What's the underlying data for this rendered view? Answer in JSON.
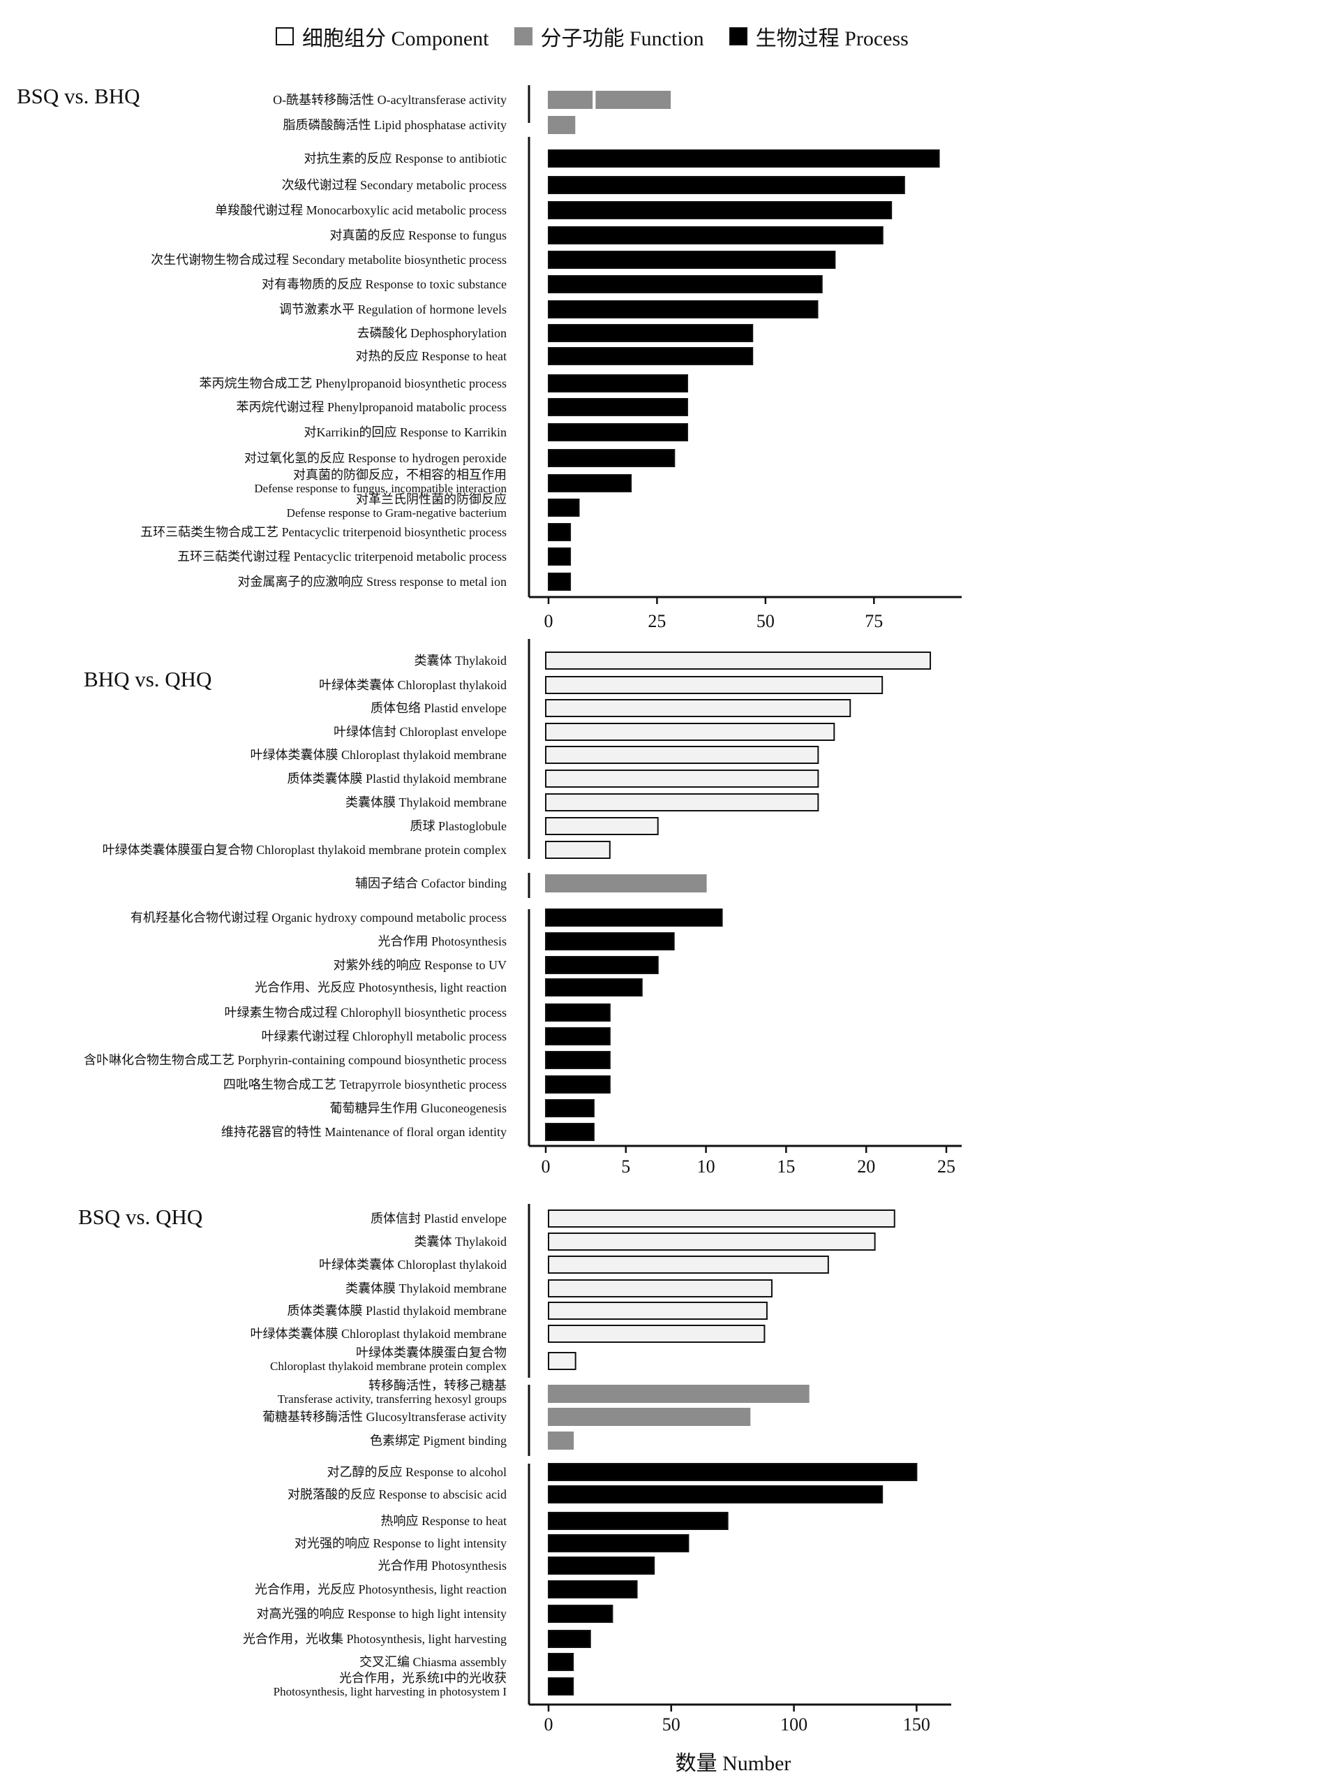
{
  "legend": {
    "component": "细胞组分 Component",
    "function": "分子功能 Function",
    "process": "生物过程 Process"
  },
  "colors": {
    "component": "#f2f2f2",
    "function": "#8c8c8c",
    "process": "#000000",
    "outline": "#111111"
  },
  "chart_data": [
    {
      "type": "bar",
      "orientation": "horizontal",
      "title": "BSQ vs. BHQ",
      "xticks": [
        0,
        25,
        50,
        75
      ],
      "xlim": [
        0,
        92
      ],
      "groups": [
        {
          "category": "function",
          "bars": [
            {
              "label": [
                "O-酰基转移酶活性  O-acyltransferase activity"
              ],
              "segments": [
                [
                  0,
                  10
                ],
                [
                  11,
                  28
                ]
              ]
            },
            {
              "label": [
                "脂质磷酸酶活性  Lipid phosphatase activity"
              ],
              "value": 6
            }
          ]
        },
        {
          "category": "process",
          "bars": [
            {
              "label": [
                "对抗生素的反应  Response to antibiotic"
              ],
              "value": 90
            },
            {
              "label": [
                "次级代谢过程 Secondary metabolic process"
              ],
              "value": 82
            },
            {
              "label": [
                "单羧酸代谢过程  Monocarboxylic acid metabolic process"
              ],
              "value": 79
            },
            {
              "label": [
                "对真菌的反应 Response to fungus"
              ],
              "value": 77
            },
            {
              "label": [
                "次生代谢物生物合成过程  Secondary metabolite biosynthetic process"
              ],
              "value": 66
            },
            {
              "label": [
                "对有毒物质的反应 Response to toxic substance"
              ],
              "value": 63
            },
            {
              "label": [
                "调节激素水平 Regulation of hormone levels"
              ],
              "value": 62
            },
            {
              "label": [
                "去磷酸化 Dephosphorylation"
              ],
              "value": 47
            },
            {
              "label": [
                "对热的反应  Response to heat"
              ],
              "value": 47
            },
            {
              "label": [
                "苯丙烷生物合成工艺    Phenylpropanoid biosynthetic process"
              ],
              "value": 32
            },
            {
              "label": [
                "苯丙烷代谢过程  Phenylpropanoid matabolic process"
              ],
              "value": 32
            },
            {
              "label": [
                "对Karrikin的回应 Response to Karrikin"
              ],
              "value": 32
            },
            {
              "label": [
                "对过氧化氢的反应 Response to hydrogen peroxide"
              ],
              "value": 29
            },
            {
              "label": [
                "对真菌的防御反应，不相容的相互作用",
                "Defense response to fungus,  incompatible interaction"
              ],
              "value": 19
            },
            {
              "label": [
                "对革兰氏阴性菌的防御反应",
                "Defense response to Gram-negative bacterium"
              ],
              "value": 7
            },
            {
              "label": [
                "五环三萜类生物合成工艺 Pentacyclic triterpenoid biosynthetic process"
              ],
              "value": 5
            },
            {
              "label": [
                "五环三萜类代谢过程 Pentacyclic triterpenoid metabolic process"
              ],
              "value": 5
            },
            {
              "label": [
                "对金属离子的应激响应 Stress response to metal ion"
              ],
              "value": 5
            }
          ]
        }
      ]
    },
    {
      "type": "bar",
      "orientation": "horizontal",
      "title": "BHQ vs. QHQ",
      "xticks": [
        0,
        5,
        10,
        15,
        20,
        25
      ],
      "xlim": [
        0,
        25
      ],
      "groups": [
        {
          "category": "component",
          "bars": [
            {
              "label": [
                "类囊体 Thylakoid"
              ],
              "value": 24
            },
            {
              "label": [
                "叶绿体类囊体 Chloroplast thylakoid"
              ],
              "value": 21
            },
            {
              "label": [
                "质体包络 Plastid envelope"
              ],
              "value": 19
            },
            {
              "label": [
                "叶绿体信封 Chloroplast envelope"
              ],
              "value": 18
            },
            {
              "label": [
                "叶绿体类囊体膜 Chloroplast thylakoid membrane"
              ],
              "value": 17
            },
            {
              "label": [
                "质体类囊体膜 Plastid thylakoid membrane"
              ],
              "value": 17
            },
            {
              "label": [
                "类囊体膜 Thylakoid membrane"
              ],
              "value": 17
            },
            {
              "label": [
                "质球 Plastoglobule"
              ],
              "value": 7
            },
            {
              "label": [
                "叶绿体类囊体膜蛋白复合物  Chloroplast thylakoid membrane protein complex"
              ],
              "value": 4
            }
          ]
        },
        {
          "category": "function",
          "bars": [
            {
              "label": [
                "辅因子结合 Cofactor binding"
              ],
              "value": 10
            }
          ]
        },
        {
          "category": "process",
          "bars": [
            {
              "label": [
                "有机羟基化合物代谢过程  Organic hydroxy compound metabolic process"
              ],
              "value": 11
            },
            {
              "label": [
                "光合作用 Photosynthesis"
              ],
              "value": 8
            },
            {
              "label": [
                "对紫外线的响应 Response to UV"
              ],
              "value": 7
            },
            {
              "label": [
                "光合作用、光反应 Photosynthesis, light reaction"
              ],
              "value": 6
            },
            {
              "label": [
                "叶绿素生物合成过程 Chlorophyll biosynthetic process"
              ],
              "value": 4
            },
            {
              "label": [
                "叶绿素代谢过程 Chlorophyll metabolic process"
              ],
              "value": 4
            },
            {
              "label": [
                "含卟啉化合物生物合成工艺  Porphyrin-containing compound biosynthetic process"
              ],
              "value": 4
            },
            {
              "label": [
                "四吡咯生物合成工艺 Tetrapyrrole biosynthetic process"
              ],
              "value": 4
            },
            {
              "label": [
                "葡萄糖异生作用 Gluconeogenesis"
              ],
              "value": 3
            },
            {
              "label": [
                "维持花器官的特性  Maintenance of floral organ identity"
              ],
              "value": 3
            }
          ]
        }
      ]
    },
    {
      "type": "bar",
      "orientation": "horizontal",
      "title": "BSQ vs. QHQ",
      "xticks": [
        0,
        50,
        100,
        150
      ],
      "xlim": [
        0,
        157
      ],
      "xlabel": "数量 Number",
      "groups": [
        {
          "category": "component",
          "bars": [
            {
              "label": [
                "质体信封 Plastid envelope"
              ],
              "value": 141
            },
            {
              "label": [
                "类囊体 Thylakoid"
              ],
              "value": 133
            },
            {
              "label": [
                "叶绿体类囊体 Chloroplast thylakoid"
              ],
              "value": 114
            },
            {
              "label": [
                "类囊体膜 Thylakoid membrane"
              ],
              "value": 91
            },
            {
              "label": [
                "质体类囊体膜 Plastid thylakoid membrane"
              ],
              "value": 89
            },
            {
              "label": [
                "叶绿体类囊体膜 Chloroplast thylakoid membrane"
              ],
              "value": 88
            },
            {
              "label": [
                "叶绿体类囊体膜蛋白复合物",
                "Chloroplast thylakoid membrane protein complex"
              ],
              "value": 11
            }
          ]
        },
        {
          "category": "function",
          "bars": [
            {
              "label": [
                "转移酶活性，转移己糖基",
                "Transferase activity, transferring hexosyl groups"
              ],
              "value": 106
            },
            {
              "label": [
                "葡糖基转移酶活性 Glucosyltransferase activity"
              ],
              "value": 82
            },
            {
              "label": [
                "色素绑定  Pigment binding"
              ],
              "value": 10
            }
          ]
        },
        {
          "category": "process",
          "bars": [
            {
              "label": [
                "对乙醇的反应 Response to alcohol"
              ],
              "value": 150
            },
            {
              "label": [
                "对脱落酸的反应 Response to abscisic acid"
              ],
              "value": 136
            },
            {
              "label": [
                "热响应 Response to heat"
              ],
              "value": 73
            },
            {
              "label": [
                "对光强的响应 Response to light intensity"
              ],
              "value": 57
            },
            {
              "label": [
                "光合作用 Photosynthesis"
              ],
              "value": 43
            },
            {
              "label": [
                "光合作用，光反应 Photosynthesis, light reaction"
              ],
              "value": 36
            },
            {
              "label": [
                "对高光强的响应 Response to high light intensity"
              ],
              "value": 26
            },
            {
              "label": [
                "光合作用，光收集 Photosynthesis, light harvesting"
              ],
              "value": 17
            },
            {
              "label": [
                "交叉汇编  Chiasma assembly"
              ],
              "value": 10
            },
            {
              "label": [
                "光合作用，光系统I中的光收获",
                "Photosynthesis, light harvesting in photosystem I"
              ],
              "value": 10
            }
          ]
        }
      ]
    }
  ]
}
